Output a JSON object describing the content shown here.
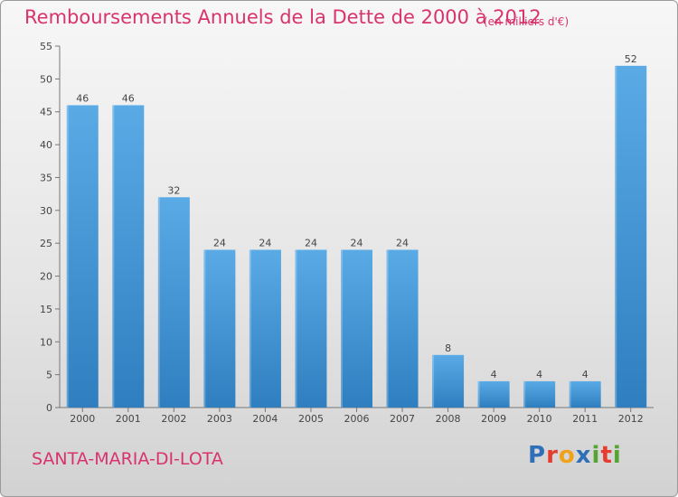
{
  "header": {
    "title": "Remboursements Annuels de la Dette de 2000 à 2012",
    "subtitle": "(en milliers d'€)"
  },
  "footer": {
    "town": "SANTA-MARIA-DI-LOTA",
    "logo_letters": [
      {
        "ch": "P",
        "color": "#2f6fb7"
      },
      {
        "ch": "r",
        "color": "#e53c2f"
      },
      {
        "ch": "o",
        "color": "#f0a21b"
      },
      {
        "ch": "x",
        "color": "#2f6fb7"
      },
      {
        "ch": "i",
        "color": "#55a532"
      },
      {
        "ch": "t",
        "color": "#e53c2f"
      },
      {
        "ch": "i",
        "color": "#55a532"
      }
    ]
  },
  "chart_data": {
    "type": "bar",
    "categories": [
      "2000",
      "2001",
      "2002",
      "2003",
      "2004",
      "2005",
      "2006",
      "2007",
      "2008",
      "2009",
      "2010",
      "2011",
      "2012"
    ],
    "values": [
      46,
      46,
      32,
      24,
      24,
      24,
      24,
      24,
      8,
      4,
      4,
      4,
      52
    ],
    "title": "Remboursements Annuels de la Dette de 2000 à 2012",
    "xlabel": "",
    "ylabel": "",
    "ylim": [
      0,
      55
    ],
    "yticks": [
      0,
      5,
      10,
      15,
      20,
      25,
      30,
      35,
      40,
      45,
      50,
      55
    ],
    "grid": false,
    "bar_color_top": "#5aaae6",
    "bar_color_bottom": "#2f7fc0"
  }
}
